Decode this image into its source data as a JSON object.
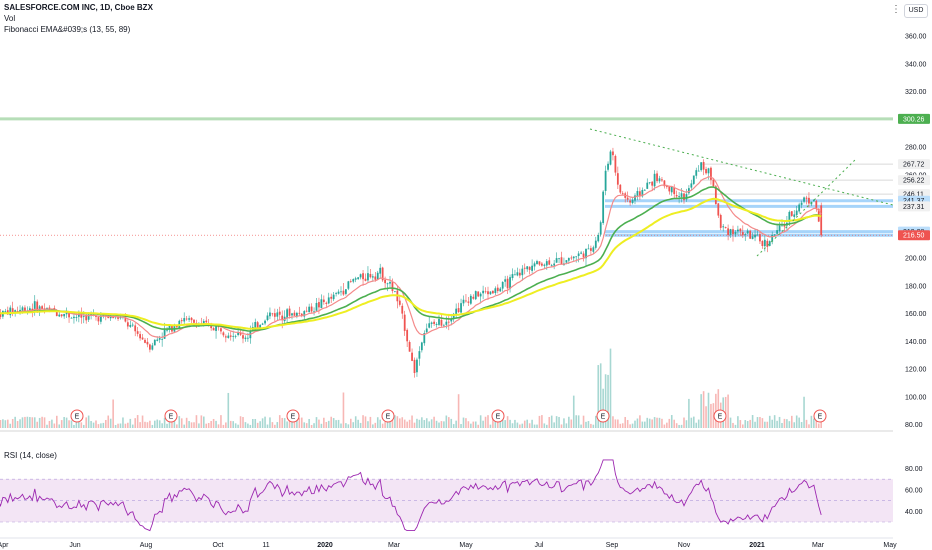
{
  "header": {
    "title": "SALESFORCE.COM INC, 1D, Cboe BZX",
    "volume_label": "Vol",
    "ema_label": "Fibonacci EMA&#039;s (13, 55, 89)"
  },
  "currency_button": "USD",
  "rsi_label": "RSI (14, close)",
  "colors": {
    "up": "#26a69a",
    "down": "#ef5350",
    "ema13": "#f48a8a",
    "ema55": "#4caf50",
    "ema89": "#eeee22",
    "rsi": "#9c27b0",
    "rsi_band": "#f3e5f5",
    "level": "#90caf9",
    "resistance": "#a5d6a7",
    "trend": "#4caf50"
  },
  "chart_data": [
    {
      "type": "candlestick",
      "title": "SALESFORCE.COM INC, 1D, Cboe BZX",
      "x_ticks": [
        "Apr",
        "Jun",
        "Aug",
        "Oct",
        "11",
        "2020",
        "Mar",
        "May",
        "Jul",
        "Sep",
        "Nov",
        "2021",
        "Mar",
        "May"
      ],
      "y_ticks": [
        80,
        100,
        120,
        140,
        160,
        180,
        200,
        220,
        240,
        260,
        280,
        300,
        320,
        340,
        360
      ],
      "ylim": [
        75,
        380
      ],
      "price_labels": [
        "300.26",
        "267.72",
        "256.22",
        "246.11",
        "241.37",
        "237.31",
        "219.08",
        "216.50"
      ],
      "earnings_markers": [
        "E",
        "E",
        "E",
        "E",
        "E",
        "E",
        "E",
        "E"
      ],
      "series": [
        {
          "name": "Close",
          "points": [
            [
              "Apr 2019",
              160
            ],
            [
              "Jun 2019",
              157
            ],
            [
              "Aug 2019",
              140
            ],
            [
              "Oct 2019",
              146
            ],
            [
              "Nov 2019",
              162
            ],
            [
              "Jan 2020",
              183
            ],
            [
              "Feb 2020",
              190
            ],
            [
              "Mar 2020",
              120
            ],
            [
              "Apr 2020",
              155
            ],
            [
              "May 2020",
              175
            ],
            [
              "Jul 2020",
              200
            ],
            [
              "Aug 2020",
              265
            ],
            [
              "Sep 2020",
              245
            ],
            [
              "Oct 2020",
              255
            ],
            [
              "Nov 2020",
              250
            ],
            [
              "Dec 2020",
              220
            ],
            [
              "Jan 2021",
              215
            ],
            [
              "Feb 2021",
              240
            ],
            [
              "Mar 2021",
              216.5
            ]
          ]
        }
      ]
    },
    {
      "type": "line",
      "title": "RSI (14, close)",
      "y_ticks": [
        40,
        60,
        80
      ],
      "ylim": [
        25,
        88
      ],
      "band": [
        30,
        70
      ],
      "x_ticks": [
        "Apr",
        "Jun",
        "Aug",
        "Oct",
        "11",
        "2020",
        "Mar",
        "May",
        "Jul",
        "Sep",
        "Nov",
        "2021",
        "Mar",
        "May"
      ]
    }
  ]
}
